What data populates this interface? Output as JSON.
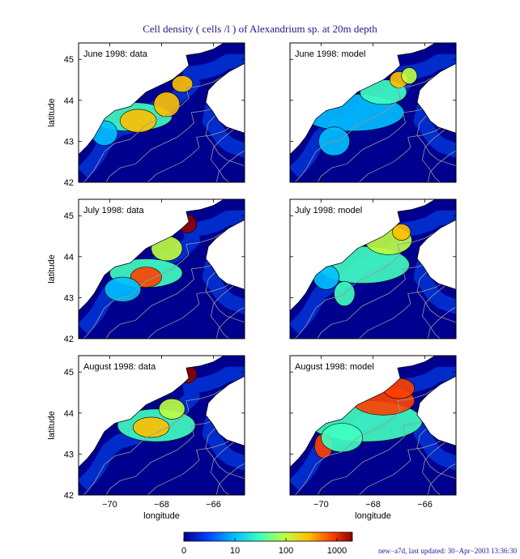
{
  "chart_data": {
    "type": "heatmap",
    "title": "Cell density ( cells /l ) of Alexandrium sp. at 20m depth",
    "xlabel": "longitude",
    "ylabel": "latitude",
    "xlim": [
      -71.2,
      -64.8
    ],
    "ylim": [
      42,
      45.4
    ],
    "xticks": [
      -70,
      -68,
      -66
    ],
    "yticks": [
      42,
      43,
      44,
      45
    ],
    "colorbar": {
      "scale": "log",
      "range": [
        1,
        2000
      ],
      "ticks": [
        1,
        10,
        100,
        1000
      ],
      "tick_labels": [
        "0",
        "10",
        "100",
        "1000"
      ],
      "colors": [
        "#00008f",
        "#0040ff",
        "#00c0ff",
        "#40ffbf",
        "#bfff40",
        "#ffc000",
        "#ff4000",
        "#8f0000"
      ]
    },
    "panels": [
      {
        "label": "June 1998: data",
        "month": "June 1998",
        "source": "data",
        "peak_log": 2.6
      },
      {
        "label": "June 1998: model",
        "month": "June 1998",
        "source": "model",
        "peak_log": 2.3
      },
      {
        "label": "July 1998: data",
        "month": "July 1998",
        "source": "data",
        "peak_log": 3.1
      },
      {
        "label": "July 1998: model",
        "month": "July 1998",
        "source": "model",
        "peak_log": 2.5
      },
      {
        "label": "August 1998: data",
        "month": "August 1998",
        "source": "data",
        "peak_log": 3.2
      },
      {
        "label": "August 1998: model",
        "month": "August 1998",
        "source": "model",
        "peak_log": 3.0
      }
    ]
  },
  "footer": "new−a7d, last updated: 30−Apr−2003 13:36:30",
  "colors": {
    "title": "#1a1a8c",
    "land": "#ffffff",
    "ocean_base": "#00008f",
    "contour": "#999999"
  }
}
